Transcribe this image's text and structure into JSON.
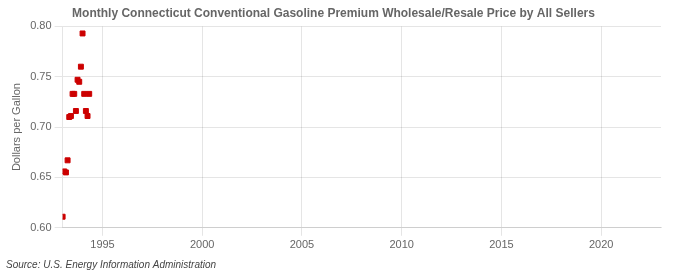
{
  "chart_data": {
    "type": "scatter",
    "title": "Monthly Connecticut Conventional Gasoline Premium Wholesale/Resale Price by All Sellers",
    "y_label": "Dollars per Gallon",
    "annotation": "Source: U.S. Energy Information Administration",
    "marker": "square",
    "color": "#cc0000",
    "x": [
      1993.0,
      1993.083,
      1993.167,
      1993.25,
      1993.333,
      1993.417,
      1993.5,
      1993.583,
      1993.667,
      1993.75,
      1993.833,
      1993.917,
      1994.0,
      1994.083,
      1994.167,
      1994.25,
      1994.333
    ],
    "values": [
      0.611,
      0.656,
      0.655,
      0.667,
      0.71,
      0.711,
      0.733,
      0.733,
      0.716,
      0.747,
      0.745,
      0.76,
      0.793,
      0.733,
      0.716,
      0.711,
      0.733
    ],
    "xlim": [
      1993.0,
      2023.0
    ],
    "xticks": [
      1995,
      2000,
      2005,
      2010,
      2015,
      2020
    ],
    "ylim": [
      0.6,
      0.8
    ],
    "yticks": [
      {
        "value": 0.6,
        "label": "0.60"
      },
      0.65,
      {
        "value": 0.7,
        "label": "0.70"
      },
      0.75,
      {
        "value": 0.8,
        "label": "0.80"
      }
    ],
    "grid": true
  }
}
